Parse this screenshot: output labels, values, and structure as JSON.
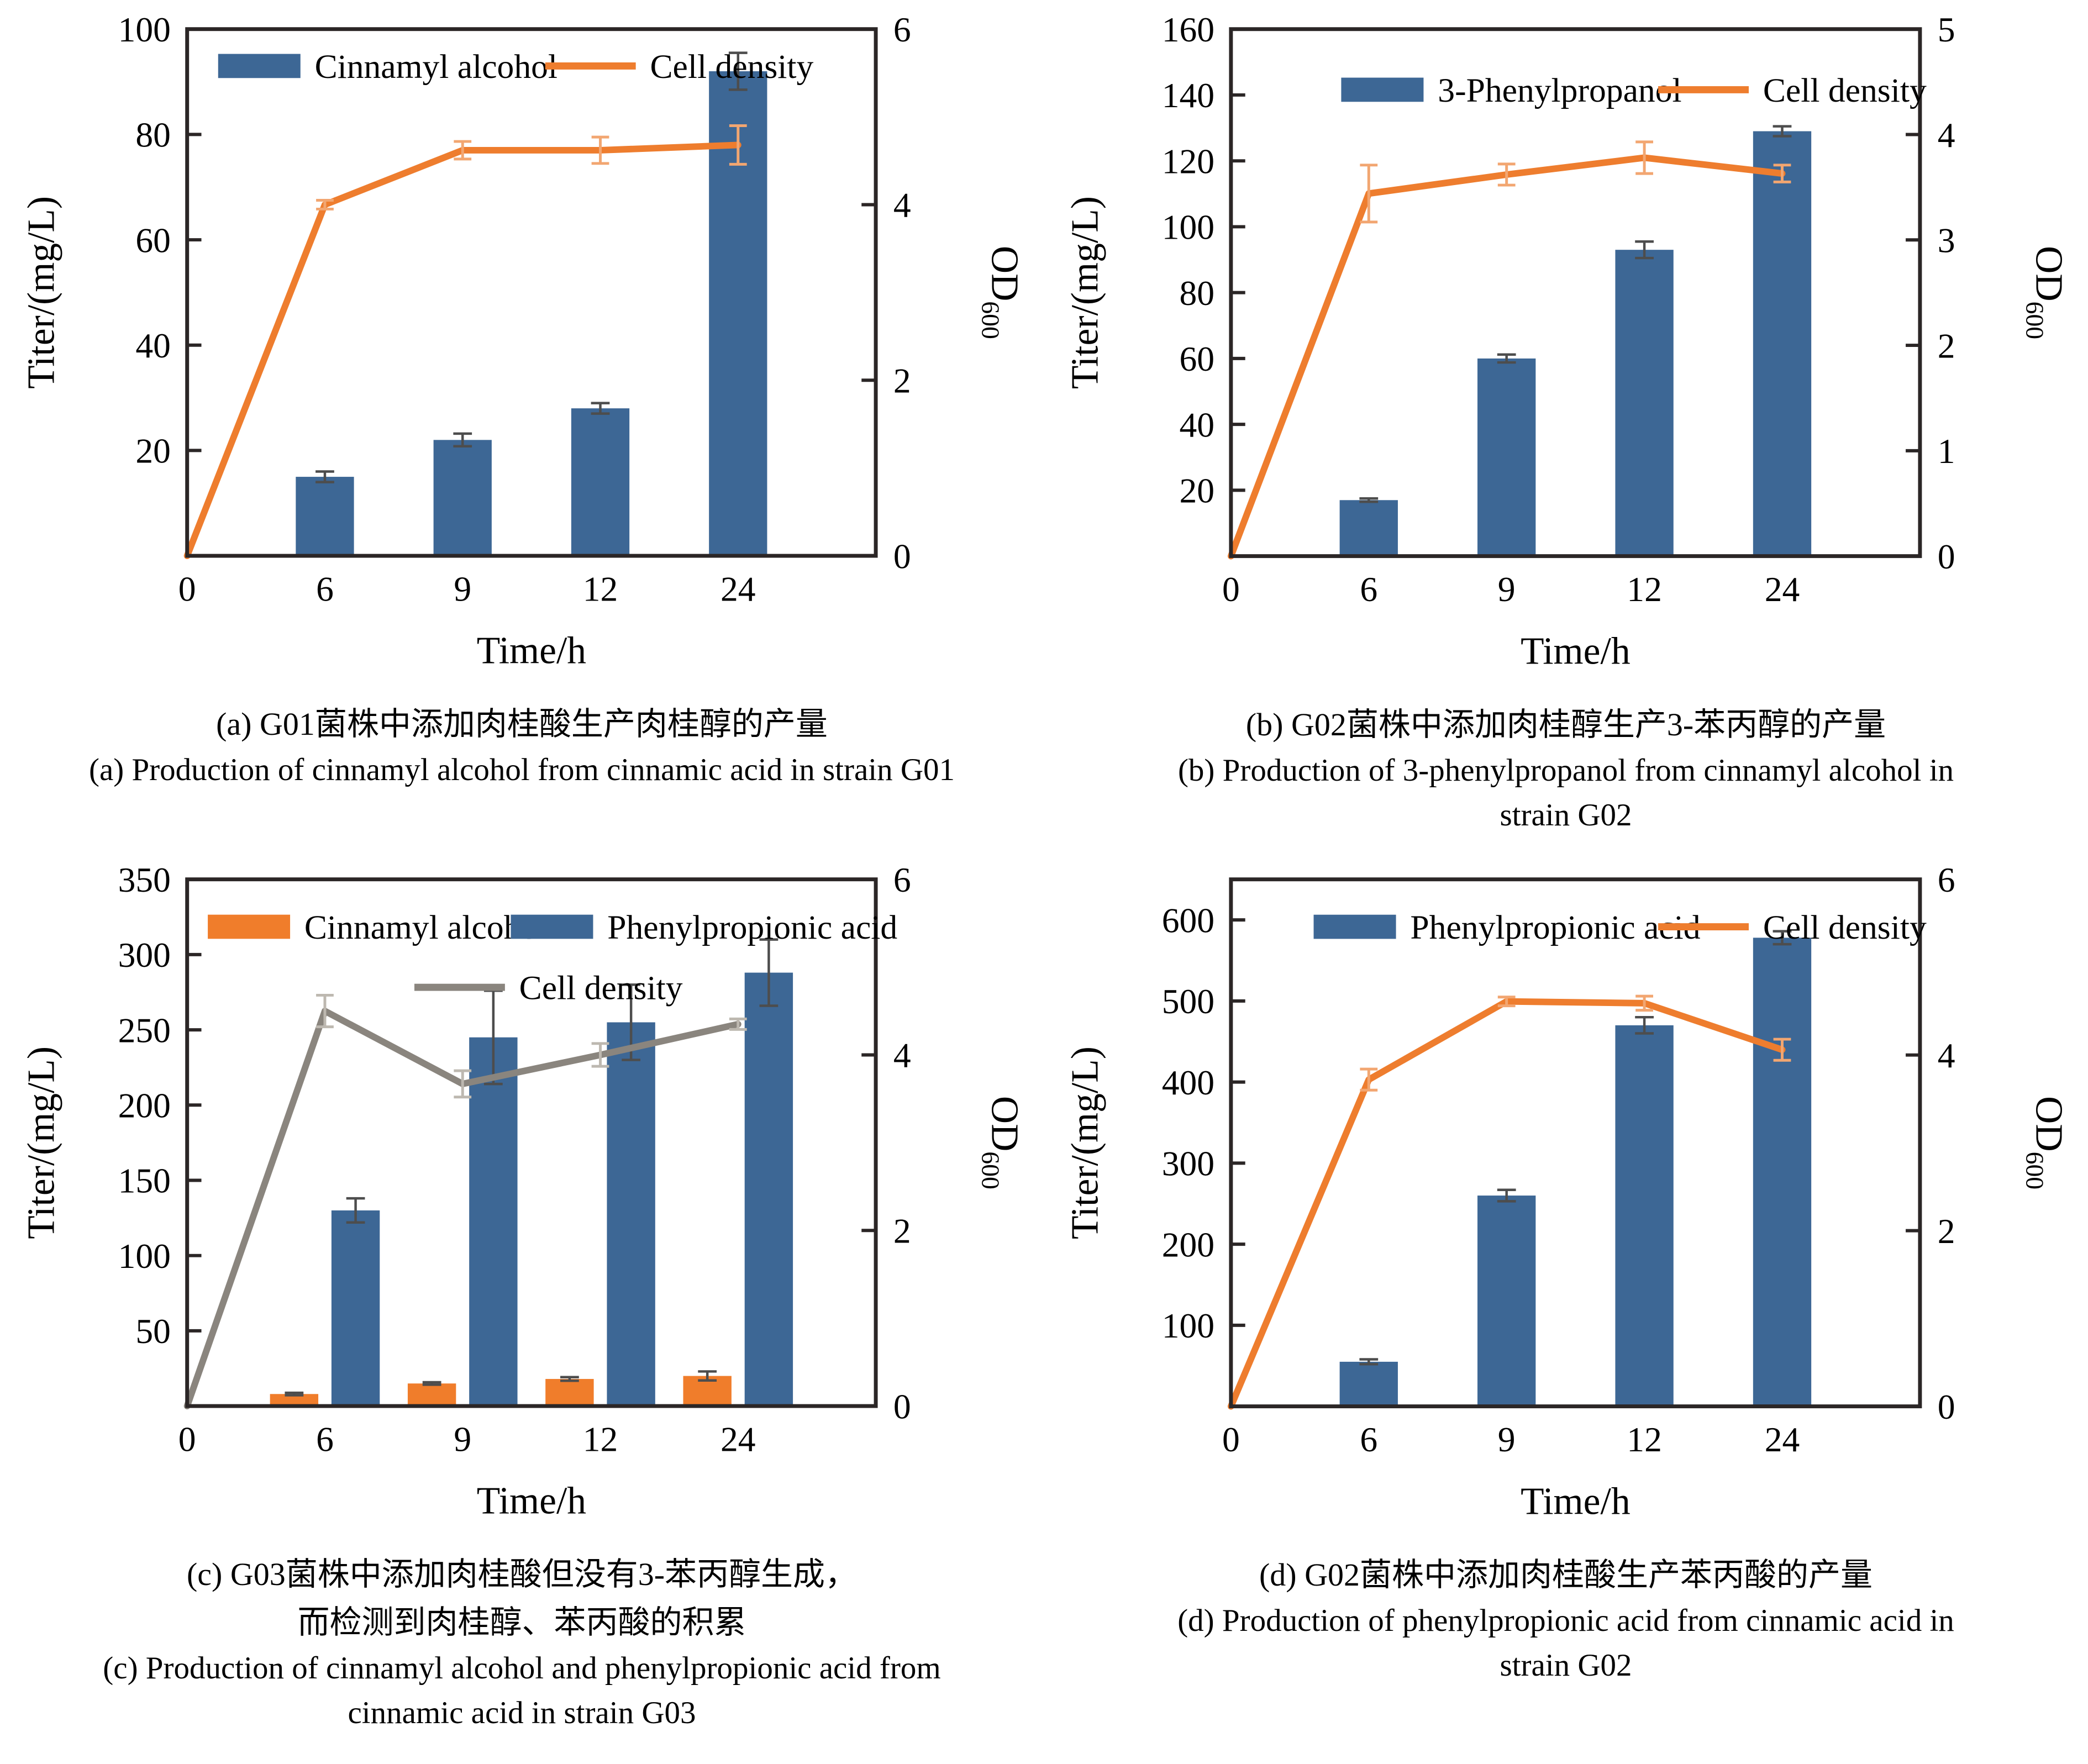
{
  "page": {
    "background": "#ffffff"
  },
  "colors": {
    "axis": "#2B2626",
    "text": "#000000",
    "bar_blue": "#3D6795",
    "bar_orange": "#F07D2B",
    "line_orange": "#EE7D2E",
    "line_gray": "#8A857E",
    "bar_error": "#4D4D4D",
    "line_error_orange": "#F2A671",
    "line_error_gray": "#BDB8B0"
  },
  "chart_data": [
    {
      "id": "a",
      "type": "bar",
      "left_axis": {
        "label": "Titer/(mg/L)",
        "min": 0,
        "max": 100,
        "ticks": [
          20,
          40,
          60,
          80,
          100
        ]
      },
      "right_axis": {
        "label_main": "OD",
        "label_sub": "600",
        "min": 0,
        "max": 6,
        "ticks": [
          0,
          2,
          4,
          6
        ]
      },
      "x_axis": {
        "label": "Time/h",
        "origin_label": "0",
        "categories": [
          "6",
          "9",
          "12",
          "24"
        ],
        "hours": [
          6,
          9,
          12,
          24
        ]
      },
      "bar_series": [
        {
          "name": "Cinnamyl alcohol",
          "color_key": "bar_blue",
          "values": [
            15,
            22,
            28,
            92
          ],
          "errors": [
            1,
            1.2,
            1,
            3.5
          ]
        }
      ],
      "line_series": [
        {
          "name": "Cell density",
          "color_key": "line_orange",
          "error_color_key": "line_error_orange",
          "axis": "right",
          "x": [
            0,
            6,
            9,
            12,
            24
          ],
          "values_od": [
            0,
            4.0,
            4.62,
            4.62,
            4.68
          ],
          "errors_od": [
            0,
            0.05,
            0.1,
            0.15,
            0.22
          ]
        }
      ],
      "legend": {
        "rows": [
          {
            "fy": 0.07,
            "entries": [
              {
                "type": "bar",
                "color_key": "bar_blue",
                "label": "Cinnamyl alcohol",
                "fx": 0.045
              },
              {
                "type": "line",
                "color_key": "line_orange",
                "label": "Cell density",
                "fx": 0.52
              }
            ]
          }
        ]
      },
      "caption": {
        "zh1": "(a) G01菌株中添加肉桂酸生产肉桂醇的产量",
        "en1": "(a) Production of cinnamyl alcohol from cinnamic acid in strain G01"
      }
    },
    {
      "id": "b",
      "type": "bar",
      "left_axis": {
        "label": "Titer/(mg/L)",
        "min": 0,
        "max": 160,
        "ticks": [
          20,
          40,
          60,
          80,
          100,
          120,
          140,
          160
        ]
      },
      "right_axis": {
        "label_main": "OD",
        "label_sub": "600",
        "min": 0,
        "max": 5,
        "ticks": [
          0,
          1,
          2,
          3,
          4,
          5
        ]
      },
      "x_axis": {
        "label": "Time/h",
        "origin_label": "0",
        "categories": [
          "6",
          "9",
          "12",
          "24"
        ],
        "hours": [
          6,
          9,
          12,
          24
        ]
      },
      "bar_series": [
        {
          "name": "3-Phenylpropanol",
          "color_key": "bar_blue",
          "values": [
            17,
            60,
            93,
            129
          ],
          "errors": [
            0.5,
            1.2,
            2.5,
            1.5
          ]
        }
      ],
      "line_series": [
        {
          "name": "Cell density",
          "color_key": "line_orange",
          "error_color_key": "line_error_orange",
          "axis": "right",
          "x": [
            0,
            6,
            9,
            12,
            24
          ],
          "values_od": [
            0,
            3.44,
            3.62,
            3.78,
            3.63
          ],
          "errors_od": [
            0,
            0.27,
            0.1,
            0.15,
            0.08
          ]
        }
      ],
      "legend": {
        "rows": [
          {
            "fy": 0.115,
            "entries": [
              {
                "type": "bar",
                "color_key": "bar_blue",
                "label": "3-Phenylpropanol",
                "fx": 0.16
              },
              {
                "type": "line",
                "color_key": "line_orange",
                "label": "Cell density",
                "fx": 0.62
              }
            ]
          }
        ]
      },
      "caption": {
        "zh1": "(b) G02菌株中添加肉桂醇生产3-苯丙醇的产量",
        "en1": "(b) Production of 3-phenylpropanol from cinnamyl alcohol in",
        "en2": "strain G02"
      }
    },
    {
      "id": "c",
      "type": "bar",
      "left_axis": {
        "label": "Titer/(mg/L)",
        "min": 0,
        "max": 350,
        "ticks": [
          50,
          100,
          150,
          200,
          250,
          300,
          350
        ]
      },
      "right_axis": {
        "label_main": "OD",
        "label_sub": "600",
        "min": 0,
        "max": 6,
        "ticks": [
          0,
          2,
          4,
          6
        ]
      },
      "x_axis": {
        "label": "Time/h",
        "origin_label": "0",
        "categories": [
          "6",
          "9",
          "12",
          "24"
        ],
        "hours": [
          6,
          9,
          12,
          24
        ]
      },
      "bar_series": [
        {
          "name": "Cinnamyl alcohol",
          "color_key": "bar_orange",
          "values": [
            8,
            15,
            18,
            20
          ],
          "errors": [
            0.8,
            0.8,
            1.2,
            3
          ]
        },
        {
          "name": "Phenylpropionic acid",
          "color_key": "bar_blue",
          "values": [
            130,
            245,
            255,
            288
          ],
          "errors": [
            8,
            31,
            25,
            22
          ]
        }
      ],
      "line_series": [
        {
          "name": "Cell density",
          "color_key": "line_gray",
          "error_color_key": "line_error_gray",
          "axis": "right",
          "x": [
            0,
            6,
            9,
            12,
            24
          ],
          "values_od": [
            0,
            4.5,
            3.67,
            4.0,
            4.35
          ],
          "errors_od": [
            0,
            0.18,
            0.15,
            0.13,
            0.06
          ]
        }
      ],
      "legend": {
        "rows": [
          {
            "fy": 0.09,
            "entries": [
              {
                "type": "bar",
                "color_key": "bar_orange",
                "label": "Cinnamyl alcohol",
                "fx": 0.03
              },
              {
                "type": "bar",
                "color_key": "bar_blue",
                "label": "Phenylpropionic acid",
                "fx": 0.47
              }
            ]
          },
          {
            "fy": 0.205,
            "entries": [
              {
                "type": "line",
                "color_key": "line_gray",
                "label": "Cell density",
                "fx": 0.33
              }
            ]
          }
        ]
      },
      "caption": {
        "zh1": "(c) G03菌株中添加肉桂酸但没有3-苯丙醇生成，",
        "zh2": "而检测到肉桂醇、苯丙酸的积累",
        "en1": "(c) Production of cinnamyl alcohol and phenylpropionic acid from",
        "en2": "cinnamic acid in strain G03"
      }
    },
    {
      "id": "d",
      "type": "bar",
      "left_axis": {
        "label": "Titer/(mg/L)",
        "min": 0,
        "max": 650,
        "ticks": [
          100,
          200,
          300,
          400,
          500,
          600
        ]
      },
      "right_axis": {
        "label_main": "OD",
        "label_sub": "600",
        "min": 0,
        "max": 6,
        "ticks": [
          0,
          2,
          4,
          6
        ]
      },
      "x_axis": {
        "label": "Time/h",
        "origin_label": "0",
        "categories": [
          "6",
          "9",
          "12",
          "24"
        ],
        "hours": [
          6,
          9,
          12,
          24
        ]
      },
      "bar_series": [
        {
          "name": "Phenylpropionic acid",
          "color_key": "bar_blue",
          "values": [
            55,
            260,
            470,
            578
          ],
          "errors": [
            3,
            7,
            10,
            8
          ]
        }
      ],
      "line_series": [
        {
          "name": "Cell density",
          "color_key": "line_orange",
          "error_color_key": "line_error_orange",
          "axis": "right",
          "x": [
            0,
            6,
            9,
            12,
            24
          ],
          "values_od": [
            0,
            3.72,
            4.61,
            4.59,
            4.06
          ],
          "errors_od": [
            0,
            0.12,
            0.05,
            0.08,
            0.12
          ]
        }
      ],
      "legend": {
        "rows": [
          {
            "fy": 0.09,
            "entries": [
              {
                "type": "bar",
                "color_key": "bar_blue",
                "label": "Phenylpropionic acid",
                "fx": 0.12
              },
              {
                "type": "line",
                "color_key": "line_orange",
                "label": "Cell density",
                "fx": 0.62
              }
            ]
          }
        ]
      },
      "caption": {
        "zh1": "(d) G02菌株中添加肉桂酸生产苯丙酸的产量",
        "en1": "(d) Production of phenylpropionic acid from cinnamic acid in",
        "en2": "strain G02"
      }
    }
  ]
}
